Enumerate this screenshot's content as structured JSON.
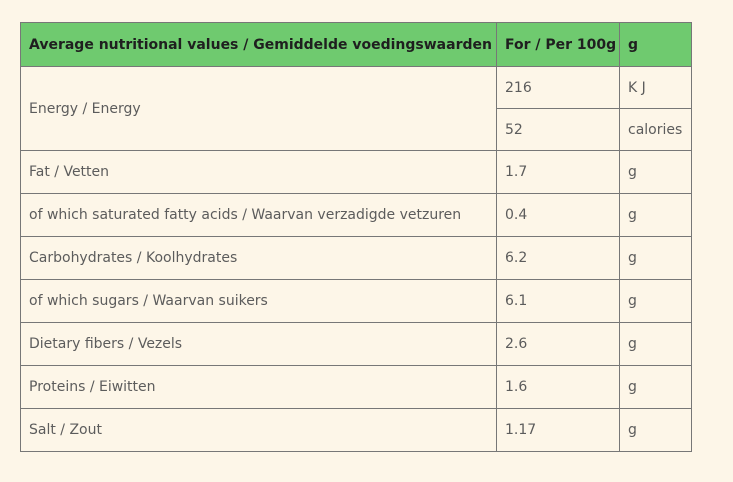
{
  "table": {
    "headers": {
      "label": "Average nutritional values / Gemiddelde voedingswaarden",
      "value": "For / Per 100g",
      "unit": "g"
    },
    "energy": {
      "label": "Energy / Energy",
      "rows": [
        {
          "value": "216",
          "unit": "K J"
        },
        {
          "value": "52",
          "unit": "calories"
        }
      ]
    },
    "rows": [
      {
        "label": "Fat / Vetten",
        "value": "1.7",
        "unit": "g"
      },
      {
        "label": "of which saturated fatty acids / Waarvan verzadigde vetzuren",
        "value": "0.4",
        "unit": "g"
      },
      {
        "label": "Carbohydrates / Koolhydrates",
        "value": "6.2",
        "unit": "g"
      },
      {
        "label": "of which sugars / Waarvan suikers",
        "value": "6.1",
        "unit": "g"
      },
      {
        "label": "Dietary fibers / Vezels",
        "value": "2.6",
        "unit": "g"
      },
      {
        "label": "Proteins / Eiwitten",
        "value": "1.6",
        "unit": "g"
      },
      {
        "label": "Salt / Zout",
        "value": "1.17",
        "unit": "g"
      }
    ]
  }
}
